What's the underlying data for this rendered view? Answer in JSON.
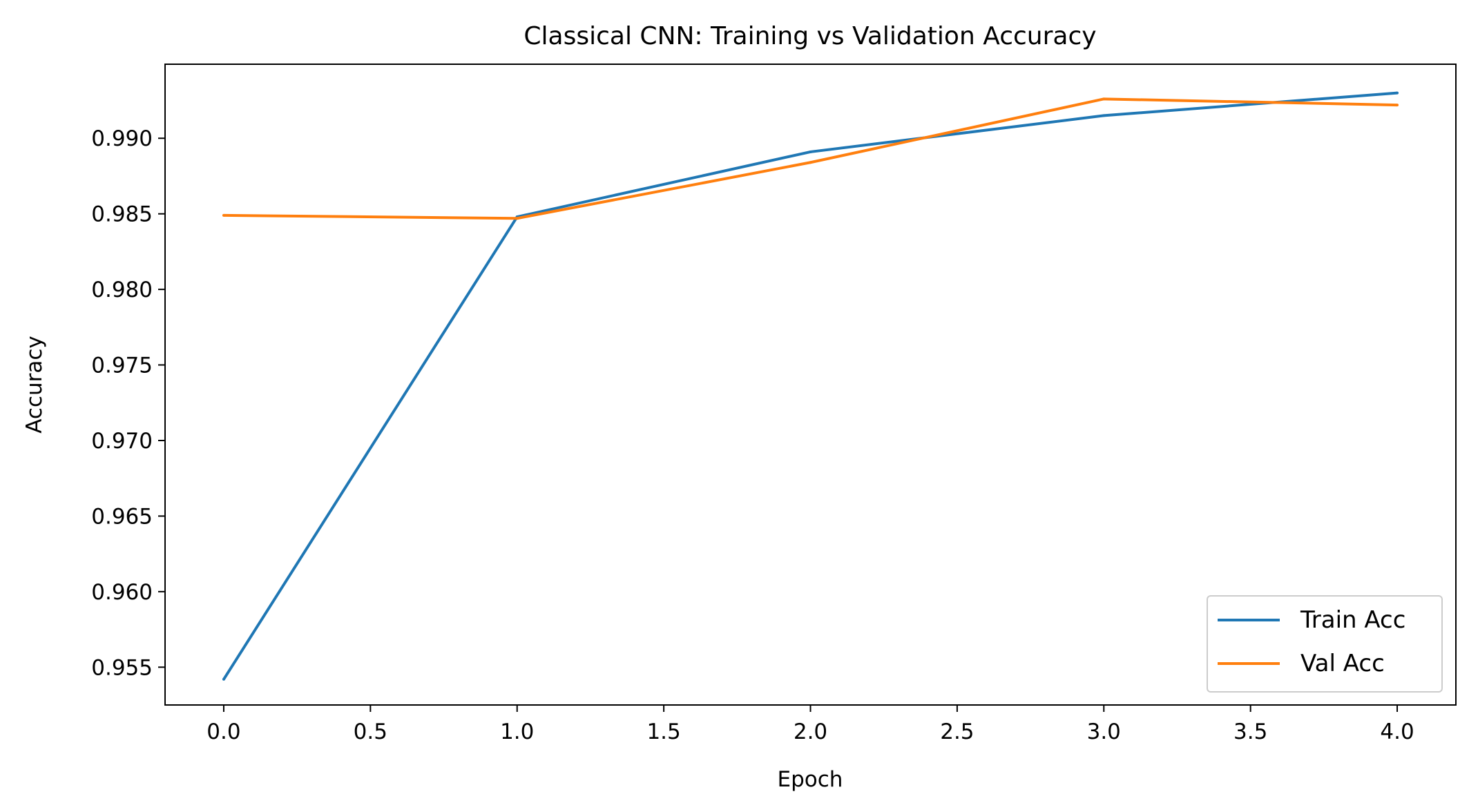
{
  "chart_data": {
    "type": "line",
    "title": "Classical CNN: Training vs Validation Accuracy",
    "xlabel": "Epoch",
    "ylabel": "Accuracy",
    "xlim": [
      -0.2,
      4.2
    ],
    "ylim": [
      0.9525,
      0.9949
    ],
    "xticks": [
      0.0,
      0.5,
      1.0,
      1.5,
      2.0,
      2.5,
      3.0,
      3.5,
      4.0
    ],
    "xtick_labels": [
      "0.0",
      "0.5",
      "1.0",
      "1.5",
      "2.0",
      "2.5",
      "3.0",
      "3.5",
      "4.0"
    ],
    "yticks": [
      0.955,
      0.96,
      0.965,
      0.97,
      0.975,
      0.98,
      0.985,
      0.99
    ],
    "ytick_labels": [
      "0.955",
      "0.960",
      "0.965",
      "0.970",
      "0.975",
      "0.980",
      "0.985",
      "0.990"
    ],
    "grid": false,
    "legend_position": "bottom-right",
    "x": [
      0,
      1,
      2,
      3,
      4
    ],
    "series": [
      {
        "name": "Train Acc",
        "color": "#1f77b4",
        "values": [
          0.9542,
          0.9848,
          0.9891,
          0.9915,
          0.993
        ]
      },
      {
        "name": "Val Acc",
        "color": "#ff7f0e",
        "values": [
          0.9849,
          0.9847,
          0.9884,
          0.9926,
          0.9922
        ]
      }
    ]
  }
}
